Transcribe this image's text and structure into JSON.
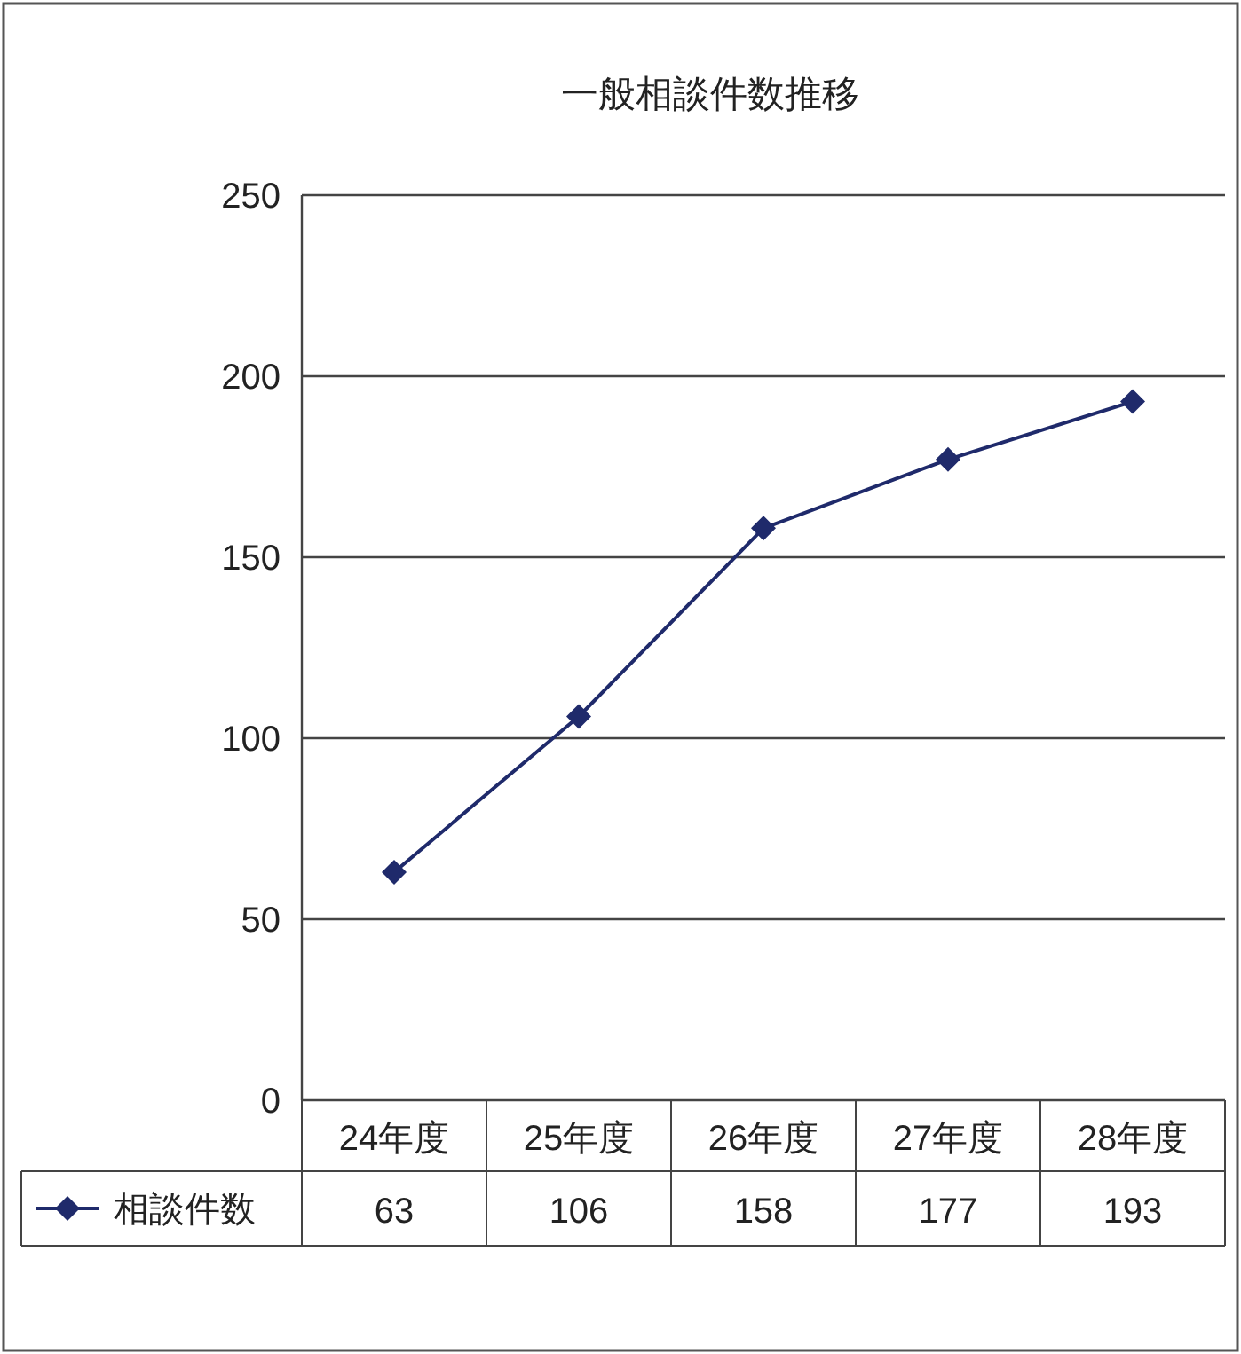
{
  "chart_data": {
    "type": "line",
    "title": "一般相談件数推移",
    "categories": [
      "24年度",
      "25年度",
      "26年度",
      "27年度",
      "28年度"
    ],
    "series": [
      {
        "name": "相談件数",
        "color": "#1f2a6b",
        "values": [
          63,
          106,
          158,
          177,
          193
        ]
      }
    ],
    "ylim": [
      0,
      250
    ],
    "yticks": [
      0,
      50,
      100,
      150,
      200,
      250
    ],
    "grid": "y",
    "legend": "bottom",
    "marker": "diamond",
    "line_style": "solid",
    "data_labels": true
  }
}
